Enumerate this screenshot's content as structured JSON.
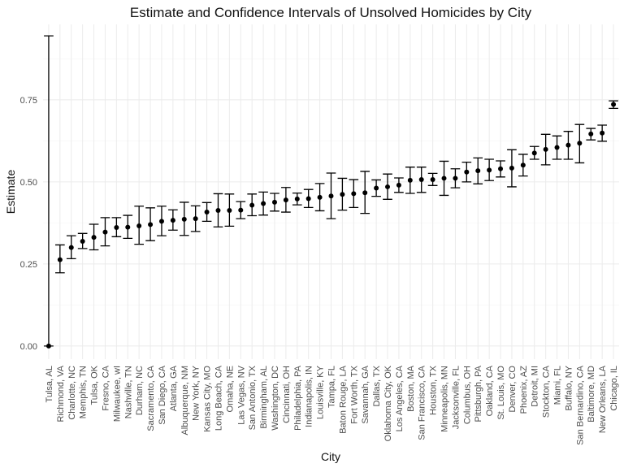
{
  "chart_data": {
    "type": "scatter",
    "title": "Estimate and Confidence Intervals of Unsolved Homicides by City",
    "xlabel": "City",
    "ylabel": "Estimate",
    "ylim": [
      -0.04,
      0.98
    ],
    "yticks": [
      0.0,
      0.25,
      0.5,
      0.75
    ],
    "ytick_labels": [
      "0.00",
      "0.25",
      "0.50",
      "0.75"
    ],
    "grid": true,
    "legend": "none",
    "point_color": "#000000",
    "points": [
      {
        "city": "Tulsa, AL",
        "estimate": 0.0,
        "lower": 0.0,
        "upper": 0.945
      },
      {
        "city": "Richmond, VA",
        "estimate": 0.263,
        "lower": 0.223,
        "upper": 0.308
      },
      {
        "city": "Charlotte, NC",
        "estimate": 0.3,
        "lower": 0.266,
        "upper": 0.336
      },
      {
        "city": "Memphis, TN",
        "estimate": 0.319,
        "lower": 0.297,
        "upper": 0.343
      },
      {
        "city": "Tulsa, OK",
        "estimate": 0.331,
        "lower": 0.293,
        "upper": 0.371
      },
      {
        "city": "Fresno, CA",
        "estimate": 0.347,
        "lower": 0.305,
        "upper": 0.391
      },
      {
        "city": "Milwaukee, wI",
        "estimate": 0.361,
        "lower": 0.333,
        "upper": 0.391
      },
      {
        "city": "Nashville, TN",
        "estimate": 0.362,
        "lower": 0.328,
        "upper": 0.398
      },
      {
        "city": "Durham, NC",
        "estimate": 0.366,
        "lower": 0.31,
        "upper": 0.426
      },
      {
        "city": "Sacramento, CA",
        "estimate": 0.37,
        "lower": 0.321,
        "upper": 0.421
      },
      {
        "city": "San Diego, CA",
        "estimate": 0.38,
        "lower": 0.336,
        "upper": 0.426
      },
      {
        "city": "Atlanta, GA",
        "estimate": 0.383,
        "lower": 0.353,
        "upper": 0.415
      },
      {
        "city": "Albuquerque, NM",
        "estimate": 0.386,
        "lower": 0.337,
        "upper": 0.438
      },
      {
        "city": "New York, NY",
        "estimate": 0.388,
        "lower": 0.349,
        "upper": 0.427
      },
      {
        "city": "Kansas City, MO",
        "estimate": 0.408,
        "lower": 0.38,
        "upper": 0.437
      },
      {
        "city": "Long Beach, CA",
        "estimate": 0.413,
        "lower": 0.363,
        "upper": 0.464
      },
      {
        "city": "Omaha, NE",
        "estimate": 0.413,
        "lower": 0.365,
        "upper": 0.463
      },
      {
        "city": "Las Vegas, NV",
        "estimate": 0.414,
        "lower": 0.388,
        "upper": 0.44
      },
      {
        "city": "San Antonio, TX",
        "estimate": 0.429,
        "lower": 0.397,
        "upper": 0.463
      },
      {
        "city": "Birmingham, AL",
        "estimate": 0.434,
        "lower": 0.399,
        "upper": 0.469
      },
      {
        "city": "Washington, DC",
        "estimate": 0.438,
        "lower": 0.411,
        "upper": 0.465
      },
      {
        "city": "Cincinnati, OH",
        "estimate": 0.445,
        "lower": 0.408,
        "upper": 0.483
      },
      {
        "city": "Philadelphia, PA",
        "estimate": 0.448,
        "lower": 0.43,
        "upper": 0.466
      },
      {
        "city": "Indianapolis, IN",
        "estimate": 0.449,
        "lower": 0.422,
        "upper": 0.477
      },
      {
        "city": "Louisville, KY",
        "estimate": 0.453,
        "lower": 0.412,
        "upper": 0.495
      },
      {
        "city": "Tampa, FL",
        "estimate": 0.457,
        "lower": 0.388,
        "upper": 0.527
      },
      {
        "city": "Baton Rouge, LA",
        "estimate": 0.462,
        "lower": 0.414,
        "upper": 0.511
      },
      {
        "city": "Fort Worth, TX",
        "estimate": 0.464,
        "lower": 0.422,
        "upper": 0.507
      },
      {
        "city": "Savannah, GA",
        "estimate": 0.467,
        "lower": 0.404,
        "upper": 0.532
      },
      {
        "city": "Dallas, TX",
        "estimate": 0.481,
        "lower": 0.456,
        "upper": 0.506
      },
      {
        "city": "Oklahoma City, OK",
        "estimate": 0.485,
        "lower": 0.447,
        "upper": 0.524
      },
      {
        "city": "Los Angeles, CA",
        "estimate": 0.49,
        "lower": 0.468,
        "upper": 0.512
      },
      {
        "city": "Boston, MA",
        "estimate": 0.505,
        "lower": 0.465,
        "upper": 0.545
      },
      {
        "city": "San Francisco, CA",
        "estimate": 0.507,
        "lower": 0.468,
        "upper": 0.545
      },
      {
        "city": "Houston, TX",
        "estimate": 0.507,
        "lower": 0.489,
        "upper": 0.526
      },
      {
        "city": "Minneapolis, MN",
        "estimate": 0.511,
        "lower": 0.459,
        "upper": 0.563
      },
      {
        "city": "Jacksonville, FL",
        "estimate": 0.511,
        "lower": 0.482,
        "upper": 0.54
      },
      {
        "city": "Columbus, OH",
        "estimate": 0.53,
        "lower": 0.5,
        "upper": 0.56
      },
      {
        "city": "Pittsburgh, PA",
        "estimate": 0.534,
        "lower": 0.494,
        "upper": 0.573
      },
      {
        "city": "Oakland, CA",
        "estimate": 0.536,
        "lower": 0.504,
        "upper": 0.569
      },
      {
        "city": "St. Louis, MO",
        "estimate": 0.54,
        "lower": 0.515,
        "upper": 0.564
      },
      {
        "city": "Denver, CO",
        "estimate": 0.542,
        "lower": 0.485,
        "upper": 0.598
      },
      {
        "city": "Phoenix, AZ",
        "estimate": 0.551,
        "lower": 0.518,
        "upper": 0.584
      },
      {
        "city": "Detroit, MI",
        "estimate": 0.588,
        "lower": 0.569,
        "upper": 0.608
      },
      {
        "city": "Stockton, CA",
        "estimate": 0.599,
        "lower": 0.552,
        "upper": 0.645
      },
      {
        "city": "Miami, FL",
        "estimate": 0.605,
        "lower": 0.569,
        "upper": 0.64
      },
      {
        "city": "Buffalo, NY",
        "estimate": 0.612,
        "lower": 0.569,
        "upper": 0.654
      },
      {
        "city": "San Bernardino, CA",
        "estimate": 0.618,
        "lower": 0.558,
        "upper": 0.675
      },
      {
        "city": "Baltimore, MD",
        "estimate": 0.646,
        "lower": 0.628,
        "upper": 0.663
      },
      {
        "city": "New Orleans, LA",
        "estimate": 0.649,
        "lower": 0.624,
        "upper": 0.673
      },
      {
        "city": "Chicago, IL",
        "estimate": 0.736,
        "lower": 0.724,
        "upper": 0.747
      }
    ]
  }
}
